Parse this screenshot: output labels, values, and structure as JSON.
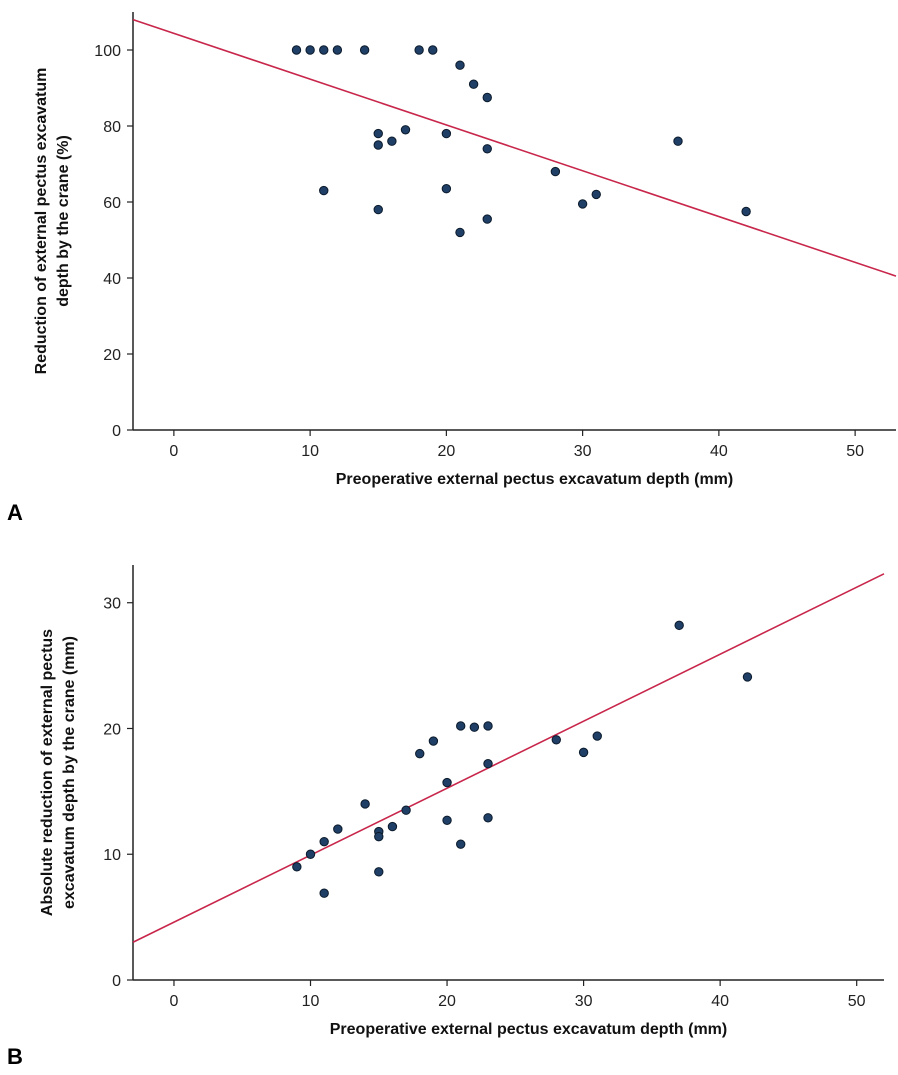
{
  "colors": {
    "point_fill": "#1f3f66",
    "point_stroke": "#0b1a2b",
    "line": "#c8264b",
    "axis": "#222222"
  },
  "chart_data": [
    {
      "panel_label": "A",
      "type": "scatter",
      "xlabel": "Preoperative external pectus excavatum depth (mm)",
      "ylabel": [
        "Reduction of external pectus excavatum",
        "depth by the crane (%)"
      ],
      "xlim": [
        -3,
        53
      ],
      "ylim": [
        0,
        110
      ],
      "xticks": [
        0,
        10,
        20,
        30,
        40,
        50
      ],
      "yticks": [
        0,
        20,
        40,
        60,
        80,
        100
      ],
      "grid": false,
      "points": [
        [
          9,
          100
        ],
        [
          10,
          100
        ],
        [
          11,
          100
        ],
        [
          12,
          100
        ],
        [
          14,
          100
        ],
        [
          18,
          100
        ],
        [
          19,
          100
        ],
        [
          21,
          96
        ],
        [
          22,
          91
        ],
        [
          23,
          87.5
        ],
        [
          15,
          78
        ],
        [
          15,
          75
        ],
        [
          16,
          76
        ],
        [
          17,
          79
        ],
        [
          20,
          78
        ],
        [
          23,
          74
        ],
        [
          11,
          63
        ],
        [
          15,
          58
        ],
        [
          20,
          63.5
        ],
        [
          21,
          52
        ],
        [
          23,
          55.5
        ],
        [
          28,
          68
        ],
        [
          30,
          59.5
        ],
        [
          31,
          62
        ],
        [
          37,
          76
        ],
        [
          42,
          57.5
        ]
      ],
      "regression_line": {
        "x": [
          -3,
          53
        ],
        "y": [
          108,
          40.5
        ]
      }
    },
    {
      "panel_label": "B",
      "type": "scatter",
      "xlabel": "Preoperative external pectus excavatum depth (mm)",
      "ylabel": [
        "Absolute reduction of external pectus",
        "excavatum depth by the crane (mm)"
      ],
      "xlim": [
        -3,
        52
      ],
      "ylim": [
        0,
        33
      ],
      "xticks": [
        0,
        10,
        20,
        30,
        40,
        50
      ],
      "yticks": [
        0,
        10,
        20,
        30
      ],
      "grid": false,
      "points": [
        [
          9,
          9
        ],
        [
          10,
          10
        ],
        [
          11,
          11
        ],
        [
          11,
          6.9
        ],
        [
          12,
          12
        ],
        [
          14,
          14
        ],
        [
          15,
          11.8
        ],
        [
          15,
          11.4
        ],
        [
          15,
          8.6
        ],
        [
          16,
          12.2
        ],
        [
          17,
          13.5
        ],
        [
          18,
          18
        ],
        [
          19,
          19
        ],
        [
          20,
          15.7
        ],
        [
          20,
          12.7
        ],
        [
          21,
          20.2
        ],
        [
          21,
          10.8
        ],
        [
          22,
          20.1
        ],
        [
          23,
          20.2
        ],
        [
          23,
          17.2
        ],
        [
          23,
          12.9
        ],
        [
          28,
          19.1
        ],
        [
          30,
          18.1
        ],
        [
          31,
          19.4
        ],
        [
          37,
          28.2
        ],
        [
          42,
          24.1
        ]
      ],
      "regression_line": {
        "x": [
          -3,
          52
        ],
        "y": [
          3,
          32.3
        ]
      }
    }
  ]
}
